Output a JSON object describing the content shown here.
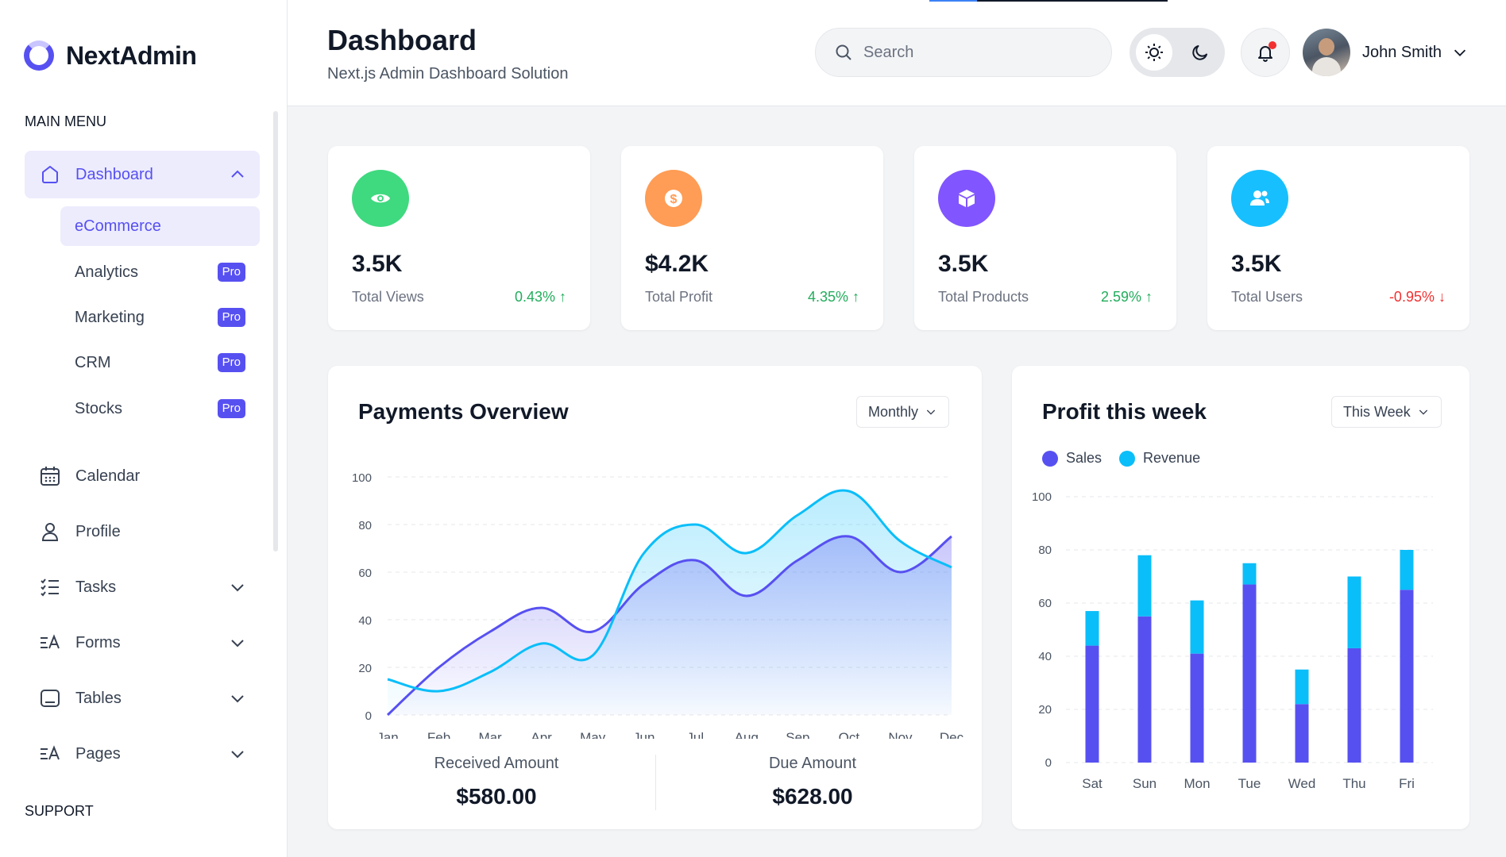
{
  "brand": {
    "name": "NextAdmin"
  },
  "sidebar": {
    "main_menu_label": "MAIN MENU",
    "support_label": "SUPPORT",
    "dashboard": {
      "label": "Dashboard"
    },
    "dashboard_children": [
      {
        "label": "eCommerce",
        "pro": ""
      },
      {
        "label": "Analytics",
        "pro": "Pro"
      },
      {
        "label": "Marketing",
        "pro": "Pro"
      },
      {
        "label": "CRM",
        "pro": "Pro"
      },
      {
        "label": "Stocks",
        "pro": "Pro"
      }
    ],
    "items": [
      {
        "label": "Calendar"
      },
      {
        "label": "Profile"
      },
      {
        "label": "Tasks"
      },
      {
        "label": "Forms"
      },
      {
        "label": "Tables"
      },
      {
        "label": "Pages"
      }
    ]
  },
  "header": {
    "title": "Dashboard",
    "subtitle": "Next.js Admin Dashboard Solution",
    "search_placeholder": "Search",
    "user_name": "John Smith"
  },
  "stats": [
    {
      "value": "3.5K",
      "label": "Total Views",
      "change": "0.43%",
      "trend": "up",
      "icon": "eye-icon",
      "color": "#3fd97f"
    },
    {
      "value": "$4.2K",
      "label": "Total Profit",
      "change": "4.35%",
      "trend": "up",
      "icon": "dollar-icon",
      "color": "#ff9c55"
    },
    {
      "value": "3.5K",
      "label": "Total Products",
      "change": "2.59%",
      "trend": "up",
      "icon": "box-icon",
      "color": "#8155ff"
    },
    {
      "value": "3.5K",
      "label": "Total Users",
      "change": "-0.95%",
      "trend": "down",
      "icon": "users-icon",
      "color": "#18bffe"
    }
  ],
  "payments": {
    "title": "Payments Overview",
    "period": "Monthly",
    "received_label": "Received Amount",
    "received_value": "$580.00",
    "due_label": "Due Amount",
    "due_value": "$628.00"
  },
  "profit": {
    "title": "Profit this week",
    "period": "This Week",
    "legend": [
      "Sales",
      "Revenue"
    ]
  },
  "chart_data": [
    {
      "type": "area",
      "title": "Payments Overview",
      "categories": [
        "Jan",
        "Feb",
        "Mar",
        "Apr",
        "May",
        "Jun",
        "Jul",
        "Aug",
        "Sep",
        "Oct",
        "Nov",
        "Dec"
      ],
      "ylim": [
        0,
        100
      ],
      "yticks": [
        0,
        20,
        40,
        60,
        80,
        100
      ],
      "series": [
        {
          "name": "Received Amount",
          "color": "#5750f1",
          "values": [
            0,
            20,
            35,
            45,
            35,
            55,
            65,
            50,
            65,
            75,
            60,
            75
          ]
        },
        {
          "name": "Due Amount",
          "color": "#0abef9",
          "values": [
            15,
            10,
            18,
            30,
            25,
            68,
            80,
            68,
            84,
            94,
            73,
            62
          ]
        }
      ]
    },
    {
      "type": "bar",
      "stacked": true,
      "title": "Profit this week",
      "categories": [
        "Sat",
        "Sun",
        "Mon",
        "Tue",
        "Wed",
        "Thu",
        "Fri"
      ],
      "ylim": [
        0,
        100
      ],
      "yticks": [
        0,
        20,
        40,
        60,
        80,
        100
      ],
      "series": [
        {
          "name": "Sales",
          "color": "#5750f1",
          "values": [
            44,
            55,
            41,
            67,
            22,
            43,
            65
          ]
        },
        {
          "name": "Revenue",
          "color": "#0abef9",
          "values": [
            13,
            23,
            20,
            8,
            13,
            27,
            15
          ]
        }
      ]
    }
  ]
}
